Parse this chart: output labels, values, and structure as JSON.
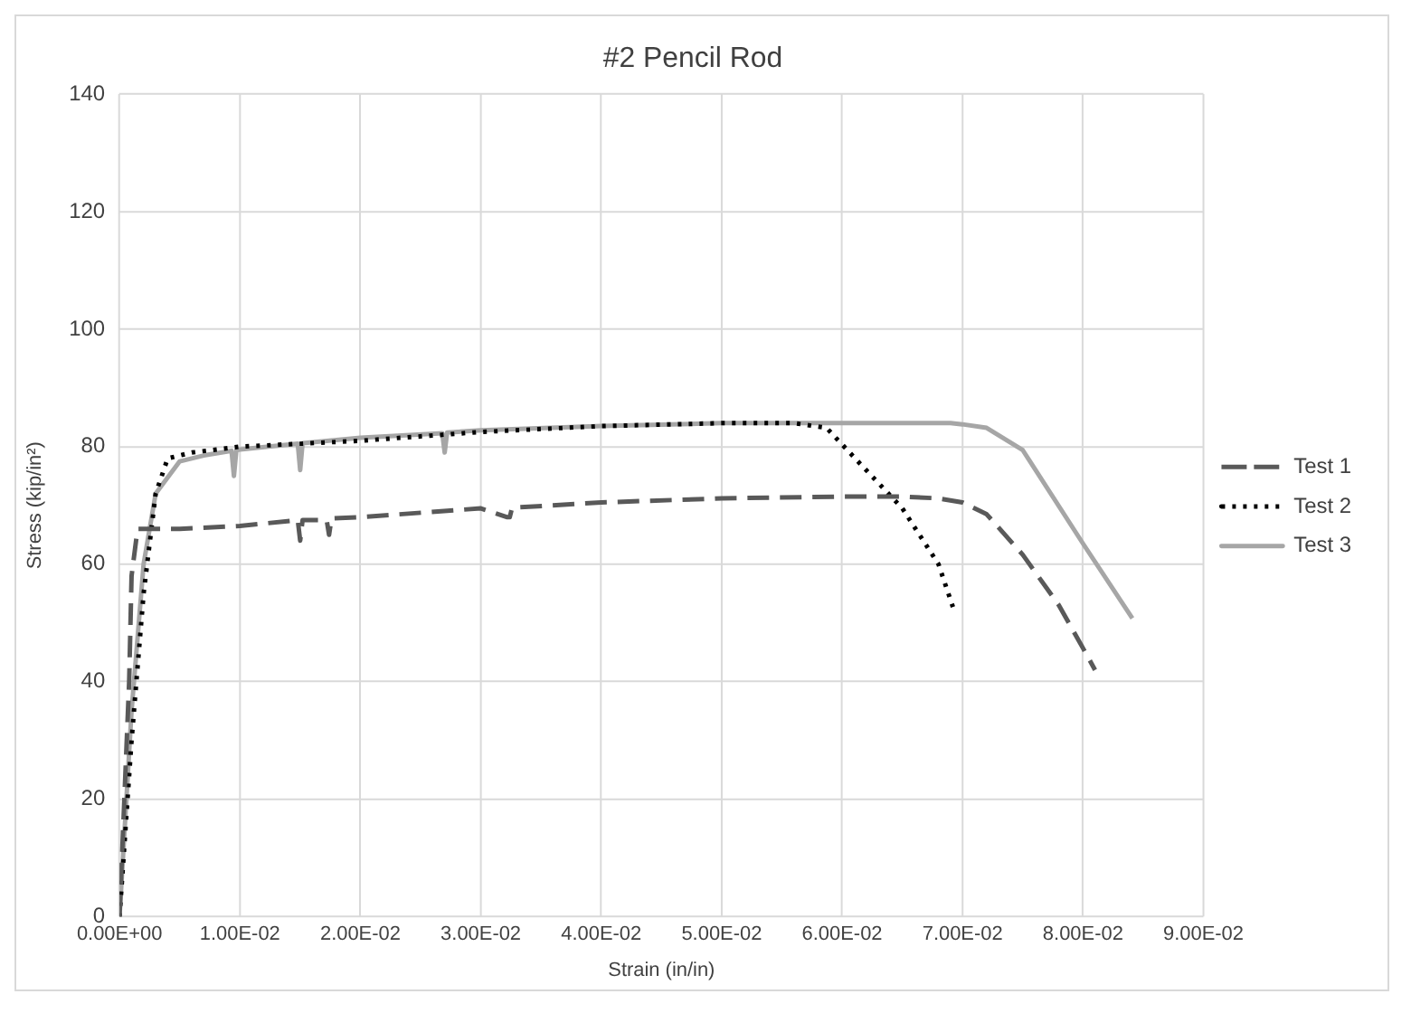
{
  "chart_data": {
    "type": "line",
    "title": "#2 Pencil Rod",
    "xlabel": "Strain (in/in)",
    "ylabel": "Stress (kip/in²)",
    "xlim": [
      0,
      0.09
    ],
    "ylim": [
      0,
      140
    ],
    "xticks": [
      {
        "value": 0,
        "label": "0.00E+00"
      },
      {
        "value": 0.01,
        "label": "1.00E-02"
      },
      {
        "value": 0.02,
        "label": "2.00E-02"
      },
      {
        "value": 0.03,
        "label": "3.00E-02"
      },
      {
        "value": 0.04,
        "label": "4.00E-02"
      },
      {
        "value": 0.05,
        "label": "5.00E-02"
      },
      {
        "value": 0.06,
        "label": "6.00E-02"
      },
      {
        "value": 0.07,
        "label": "7.00E-02"
      },
      {
        "value": 0.08,
        "label": "8.00E-02"
      },
      {
        "value": 0.09,
        "label": "9.00E-02"
      }
    ],
    "yticks": [
      0,
      20,
      40,
      60,
      80,
      100,
      120,
      140
    ],
    "grid": true,
    "legend": "right",
    "marker": "none",
    "series": [
      {
        "name": "Test 1",
        "color": "#595959",
        "line_style": "dashed",
        "x": [
          0,
          0.0005,
          0.0008,
          0.001,
          0.0015,
          0.005,
          0.01,
          0.0148,
          0.015,
          0.0152,
          0.0172,
          0.0174,
          0.0176,
          0.02,
          0.03,
          0.0322,
          0.0324,
          0.0326,
          0.04,
          0.05,
          0.06,
          0.065,
          0.068,
          0.07,
          0.072,
          0.075,
          0.078,
          0.08,
          0.081
        ],
        "values": [
          0,
          25,
          40,
          58,
          66,
          66,
          66.5,
          67.5,
          64,
          67.5,
          67.5,
          65,
          67.8,
          68,
          69.5,
          68,
          68,
          69.6,
          70.5,
          71.2,
          71.5,
          71.5,
          71.2,
          70.5,
          68.5,
          61.6,
          53,
          45.7,
          42
        ]
      },
      {
        "name": "Test 2",
        "color": "#000000",
        "line_style": "dotted",
        "x": [
          0,
          0.001,
          0.002,
          0.003,
          0.004,
          0.006,
          0.01,
          0.02,
          0.03,
          0.04,
          0.05,
          0.056,
          0.0587,
          0.062,
          0.065,
          0.068,
          0.0692
        ],
        "values": [
          0,
          30,
          55,
          72,
          78,
          79,
          80,
          81,
          82.5,
          83.5,
          84,
          84,
          83.2,
          76,
          69.5,
          60,
          52.7
        ]
      },
      {
        "name": "Test 3",
        "color": "#a6a6a6",
        "line_style": "solid",
        "x": [
          0,
          0.001,
          0.002,
          0.003,
          0.005,
          0.007,
          0.0093,
          0.0095,
          0.0097,
          0.01,
          0.0148,
          0.015,
          0.0152,
          0.02,
          0.0268,
          0.027,
          0.0272,
          0.03,
          0.04,
          0.05,
          0.06,
          0.069,
          0.07,
          0.072,
          0.075,
          0.08,
          0.0841
        ],
        "values": [
          0,
          35,
          60,
          72,
          77.5,
          78.5,
          79.3,
          75,
          79.4,
          79.5,
          80.5,
          76,
          80.6,
          81.5,
          82.3,
          79,
          82.4,
          82.8,
          83.5,
          84,
          84,
          84,
          83.8,
          83.2,
          79.4,
          63.5,
          50.8
        ]
      }
    ]
  }
}
